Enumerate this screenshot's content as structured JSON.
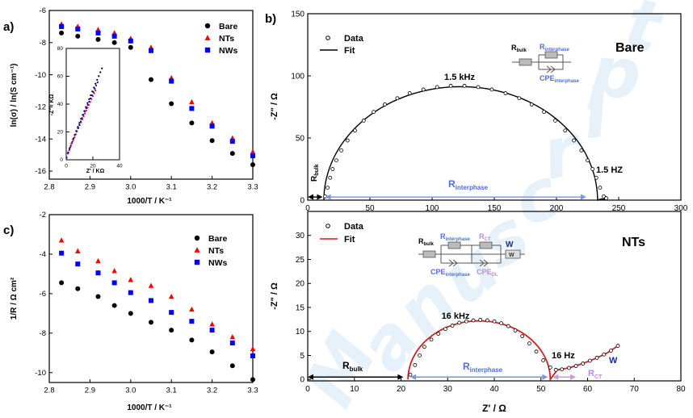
{
  "watermark": "Manuscript",
  "chart_data": [
    {
      "panel": "a)",
      "type": "scatter",
      "xlabel": "1000/T / K⁻¹",
      "ylabel": "ln(σ) / ln(S cm⁻¹)",
      "xlim": [
        2.8,
        3.3
      ],
      "ylim": [
        -16.5,
        -6
      ],
      "xticks": [
        "2.8",
        "2.9",
        "3.0",
        "3.1",
        "3.2",
        "3.3"
      ],
      "yticks": [
        "-6",
        "-8",
        "-10",
        "-12",
        "-14",
        "-16"
      ],
      "legend": [
        "Bare",
        "NTs",
        "NWs"
      ],
      "x": [
        2.83,
        2.87,
        2.92,
        2.96,
        3.0,
        3.05,
        3.1,
        3.15,
        3.2,
        3.25,
        3.3
      ],
      "series": [
        {
          "name": "Bare",
          "color": "#000000",
          "marker": "circle",
          "values": [
            -7.4,
            -7.6,
            -7.8,
            -8.0,
            -8.3,
            -10.3,
            -11.8,
            -13.0,
            -14.1,
            -14.9,
            -15.6
          ]
        },
        {
          "name": "NTs",
          "color": "#ff0000",
          "marker": "triangle",
          "values": [
            -6.85,
            -7.0,
            -7.2,
            -7.4,
            -7.75,
            -8.3,
            -10.2,
            -11.7,
            -13.0,
            -13.95,
            -14.8
          ]
        },
        {
          "name": "NWs",
          "color": "#0000ff",
          "marker": "square",
          "values": [
            -7.0,
            -7.15,
            -7.4,
            -7.6,
            -7.9,
            -8.5,
            -10.4,
            -12.1,
            -13.2,
            -14.15,
            -15.05
          ]
        }
      ],
      "inset": {
        "xlabel": "Z' / KΩ",
        "ylabel": "-Z\" / KΩ",
        "xlim": [
          0,
          40
        ],
        "ylim": [
          0,
          80
        ],
        "xticks": [
          "0",
          "20",
          "40"
        ],
        "yticks": [
          "0",
          "20",
          "40",
          "60",
          "80"
        ]
      }
    },
    {
      "panel": "c)",
      "type": "scatter",
      "xlabel": "1000/T / K⁻¹",
      "ylabel": "1/R / Ω cm²",
      "xlim": [
        2.8,
        3.3
      ],
      "ylim": [
        -10.5,
        -2
      ],
      "xticks": [
        "2.8",
        "2.9",
        "3.0",
        "3.1",
        "3.2",
        "3.3"
      ],
      "yticks": [
        "-2",
        "-4",
        "-6",
        "-8",
        "-10"
      ],
      "legend": [
        "Bare",
        "NTs",
        "NWs"
      ],
      "x": [
        2.83,
        2.87,
        2.92,
        2.96,
        3.0,
        3.05,
        3.1,
        3.15,
        3.2,
        3.25,
        3.3
      ],
      "series": [
        {
          "name": "Bare",
          "color": "#000000",
          "marker": "circle",
          "values": [
            -5.45,
            -5.75,
            -6.15,
            -6.6,
            -7.0,
            -7.45,
            -7.85,
            -8.35,
            -8.95,
            -9.65,
            -10.35
          ]
        },
        {
          "name": "NTs",
          "color": "#ff0000",
          "marker": "triangle",
          "values": [
            -3.3,
            -3.85,
            -4.35,
            -4.85,
            -5.3,
            -5.6,
            -6.15,
            -6.8,
            -7.55,
            -8.2,
            -8.8
          ]
        },
        {
          "name": "NWs",
          "color": "#0000ff",
          "marker": "square",
          "values": [
            -3.95,
            -4.5,
            -4.95,
            -5.45,
            -5.95,
            -6.35,
            -6.95,
            -7.4,
            -7.85,
            -8.5,
            -9.15
          ]
        }
      ]
    },
    {
      "panel": "b)",
      "type": "scatter",
      "title": "Bare",
      "xlabel": "",
      "ylabel": "-Z\" / Ω",
      "xlim": [
        0,
        300
      ],
      "ylim": [
        0,
        150
      ],
      "xticks": [
        "0",
        "50",
        "100",
        "150",
        "200",
        "250",
        "300"
      ],
      "yticks": [
        "0",
        "50",
        "100",
        "150"
      ],
      "legend": [
        "Data",
        "Fit"
      ],
      "annotations": [
        "1.5 kHz",
        "1.5 HZ"
      ],
      "circuit": {
        "r_bulk_main": "R",
        "r_bulk_sub": "bulk",
        "r_int_main": "R",
        "r_int_sub": "interphase",
        "cpe_main": "CPE",
        "cpe_sub": "interphase"
      },
      "labels": {
        "r_bulk_main": "R",
        "r_bulk_sub": "bulk",
        "r_int_main": "R",
        "r_int_sub": "interphase"
      },
      "arc": {
        "r_bulk": 13,
        "r_interphase": 220,
        "depression": 0.83
      },
      "data_x": [
        14,
        16,
        18,
        20,
        23,
        27,
        32,
        38,
        45,
        53,
        62,
        72,
        82,
        93,
        104,
        115,
        126,
        137,
        148,
        159,
        170,
        180,
        190,
        199,
        207,
        214,
        220,
        225,
        229,
        232,
        235,
        238,
        240
      ],
      "data_y": [
        3,
        10,
        18,
        25,
        32,
        40,
        48,
        56,
        64,
        71,
        77,
        82,
        86,
        89,
        91,
        92,
        92,
        91,
        89,
        86,
        82,
        77,
        71,
        64,
        56,
        48,
        40,
        32,
        25,
        18,
        10,
        3,
        1.5
      ]
    },
    {
      "panel": "b)",
      "type": "scatter",
      "title": "NTs",
      "xlabel": "Z' / Ω",
      "ylabel": "-Z\" / Ω",
      "xlim": [
        0,
        80
      ],
      "ylim": [
        0,
        35
      ],
      "xticks": [
        "0",
        "10",
        "20",
        "30",
        "40",
        "50",
        "60",
        "70",
        "80"
      ],
      "yticks": [
        "0",
        "5",
        "10",
        "15",
        "20",
        "25",
        "30"
      ],
      "legend": [
        "Data",
        "Fit"
      ],
      "annotations": [
        "16 kHz",
        "16 Hz",
        "W"
      ],
      "circuit": {
        "r_bulk_main": "R",
        "r_bulk_sub": "bulk",
        "r_int_main": "R",
        "r_int_sub": "interphase",
        "rct_main": "R",
        "rct_sub": "CT",
        "cpe_main": "CPE",
        "cpe_sub": "interphase",
        "cpedl_main": "CPE",
        "cpedl_sub": "DL",
        "w1": "W",
        "w2": "W"
      },
      "labels": {
        "r_bulk_main": "R",
        "r_bulk_sub": "bulk",
        "r_int_main": "R",
        "r_int_sub": "interphase",
        "rct_main": "R",
        "rct_sub": "CT"
      },
      "arc": {
        "r_bulk": 21.5,
        "r_interphase": 30.5,
        "depression": 0.8
      },
      "data_x": [
        22,
        23,
        24,
        25,
        26.5,
        28,
        29.5,
        31,
        32.5,
        34,
        35.5,
        37,
        38.5,
        40,
        41.5,
        43,
        44.5,
        46,
        47.5,
        49,
        50.5,
        52,
        53.2,
        54.5,
        56,
        57.5,
        59,
        60.5,
        62,
        63.5,
        65,
        66.5
      ],
      "data_y": [
        1,
        3,
        5,
        6.8,
        8.3,
        9.5,
        10.5,
        11.2,
        11.8,
        12.1,
        12.3,
        12.4,
        12.3,
        12.1,
        11.7,
        11.1,
        10.2,
        9,
        7.5,
        5.8,
        4,
        2.5,
        2,
        2.1,
        2.4,
        2.8,
        3.3,
        3.9,
        4.5,
        5.2,
        6,
        7
      ]
    }
  ]
}
